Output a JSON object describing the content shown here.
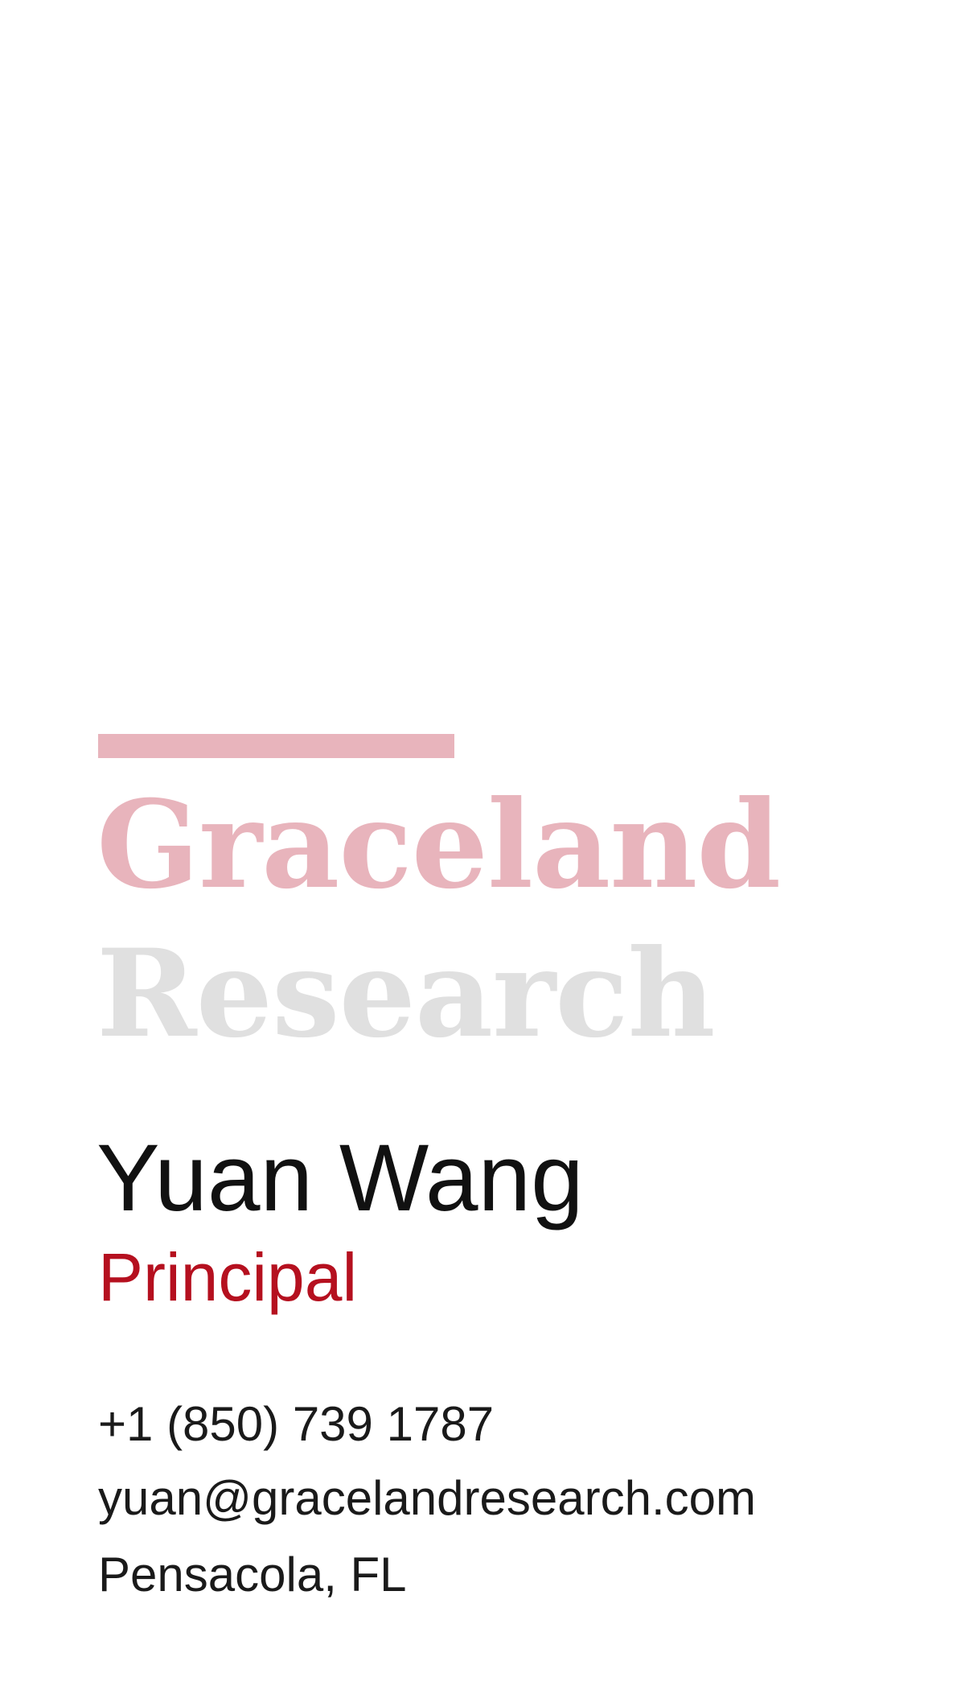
{
  "colors": {
    "accent_light": "#e8b4bc",
    "brand_secondary": "#e0e0e0",
    "accent_dark": "#b5101f",
    "text": "#111111"
  },
  "brand": {
    "line1": "Graceland",
    "line2": "Research"
  },
  "person": {
    "name": "Yuan Wang",
    "title": "Principal"
  },
  "contact": {
    "phone": "+1 (850) 739 1787",
    "email": "yuan@gracelandresearch.com",
    "location": "Pensacola, FL"
  }
}
